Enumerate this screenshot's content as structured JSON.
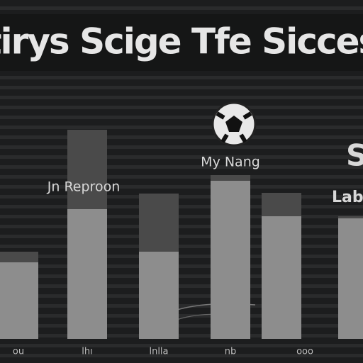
{
  "chart_data": {
    "type": "bar",
    "title": "ctirys Scige Tfe Siccess",
    "annotations": [
      "Jn Reproon",
      "My Nang",
      "S",
      "Lab"
    ],
    "categories": [
      "ou",
      "lhı",
      "lnlla",
      "nb",
      "ooo",
      null
    ],
    "series": [
      {
        "color": "#8d8d8d",
        "values": [
          108,
          183,
          123,
          223,
          173,
          170
        ]
      },
      {
        "color": "#4a4a4a",
        "values": [
          15,
          112,
          82,
          8,
          33,
          3
        ]
      }
    ],
    "ylim": [
      0,
      330
    ]
  }
}
